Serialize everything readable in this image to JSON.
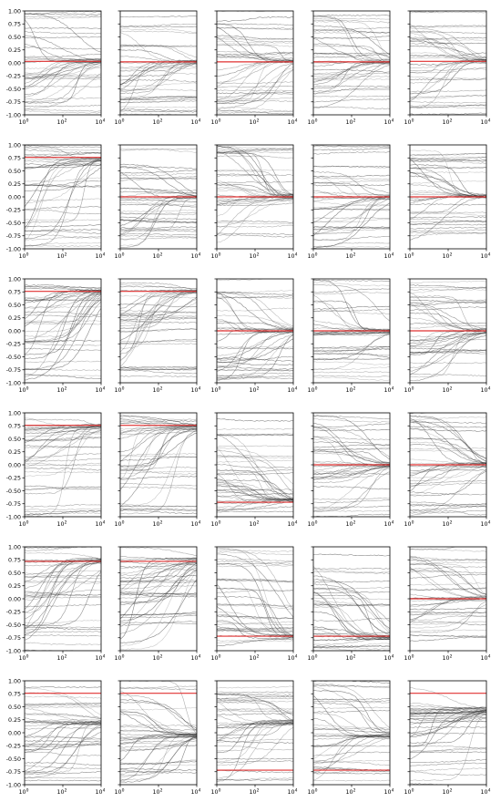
{
  "figure": {
    "rows": 6,
    "cols": 5,
    "xscale": "log",
    "xlim": [
      1,
      10000
    ],
    "ylim": [
      -1.0,
      1.0
    ],
    "x_tick_labels": [
      "10",
      "10",
      "10"
    ],
    "x_tick_exponents": [
      "0",
      "2",
      "4"
    ],
    "y_tick_labels": [
      "1.00",
      "0.75",
      "0.50",
      "0.25",
      "0.00",
      "-0.25",
      "-0.50",
      "-0.75",
      "-1.00"
    ],
    "trace_color": "#333333",
    "reference_color": "#e03030"
  },
  "chart_data": [
    {
      "type": "line",
      "row": 1,
      "col": 1,
      "reference": 0.03,
      "convergence": 0.03
    },
    {
      "type": "line",
      "row": 1,
      "col": 2,
      "reference": 0.02,
      "convergence": 0.02
    },
    {
      "type": "line",
      "row": 1,
      "col": 3,
      "reference": 0.02,
      "convergence": 0.02
    },
    {
      "type": "line",
      "row": 1,
      "col": 4,
      "reference": 0.02,
      "convergence": 0.02
    },
    {
      "type": "line",
      "row": 1,
      "col": 5,
      "reference": 0.03,
      "convergence": 0.03
    },
    {
      "type": "line",
      "row": 2,
      "col": 1,
      "reference": 0.76,
      "convergence": 0.72
    },
    {
      "type": "line",
      "row": 2,
      "col": 2,
      "reference": 0.0,
      "convergence": 0.0
    },
    {
      "type": "line",
      "row": 2,
      "col": 3,
      "reference": 0.0,
      "convergence": 0.0
    },
    {
      "type": "line",
      "row": 2,
      "col": 4,
      "reference": 0.0,
      "convergence": 0.0
    },
    {
      "type": "line",
      "row": 2,
      "col": 5,
      "reference": 0.0,
      "convergence": 0.0
    },
    {
      "type": "line",
      "row": 3,
      "col": 1,
      "reference": 0.76,
      "convergence": 0.76
    },
    {
      "type": "line",
      "row": 3,
      "col": 2,
      "reference": 0.76,
      "convergence": 0.76
    },
    {
      "type": "line",
      "row": 3,
      "col": 3,
      "reference": 0.0,
      "convergence": 0.0
    },
    {
      "type": "line",
      "row": 3,
      "col": 4,
      "reference": 0.0,
      "convergence": 0.0
    },
    {
      "type": "line",
      "row": 3,
      "col": 5,
      "reference": 0.0,
      "convergence": 0.0
    },
    {
      "type": "line",
      "row": 4,
      "col": 1,
      "reference": 0.76,
      "convergence": 0.74
    },
    {
      "type": "line",
      "row": 4,
      "col": 2,
      "reference": 0.76,
      "convergence": 0.72
    },
    {
      "type": "line",
      "row": 4,
      "col": 3,
      "reference": -0.72,
      "convergence": -0.68
    },
    {
      "type": "line",
      "row": 4,
      "col": 4,
      "reference": 0.0,
      "convergence": 0.0
    },
    {
      "type": "line",
      "row": 4,
      "col": 5,
      "reference": 0.0,
      "convergence": 0.0
    },
    {
      "type": "line",
      "row": 5,
      "col": 1,
      "reference": 0.72,
      "convergence": 0.75
    },
    {
      "type": "line",
      "row": 5,
      "col": 2,
      "reference": 0.72,
      "convergence": 0.75
    },
    {
      "type": "line",
      "row": 5,
      "col": 3,
      "reference": -0.72,
      "convergence": -0.74
    },
    {
      "type": "line",
      "row": 5,
      "col": 4,
      "reference": -0.72,
      "convergence": -0.74
    },
    {
      "type": "line",
      "row": 5,
      "col": 5,
      "reference": 0.0,
      "convergence": 0.0
    },
    {
      "type": "line",
      "row": 6,
      "col": 1,
      "reference": 0.76,
      "convergence": 0.2
    },
    {
      "type": "line",
      "row": 6,
      "col": 2,
      "reference": 0.76,
      "convergence": -0.05
    },
    {
      "type": "line",
      "row": 6,
      "col": 3,
      "reference": -0.72,
      "convergence": 0.2
    },
    {
      "type": "line",
      "row": 6,
      "col": 4,
      "reference": -0.72,
      "convergence": -0.05
    },
    {
      "type": "line",
      "row": 6,
      "col": 5,
      "reference": 0.76,
      "convergence": 0.45
    }
  ]
}
